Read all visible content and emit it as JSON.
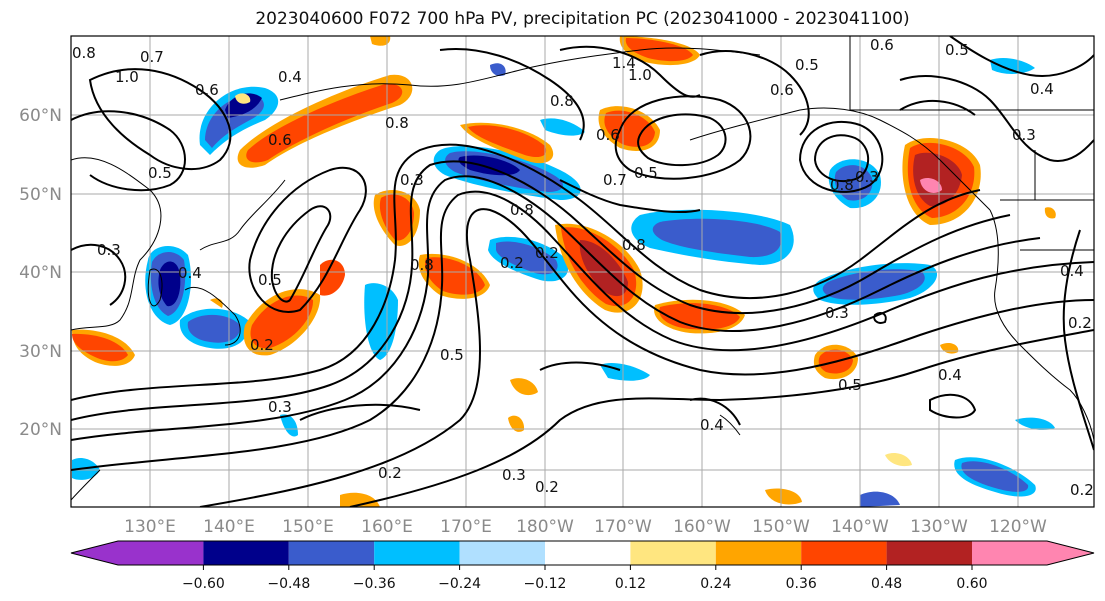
{
  "title": "2023040600 F072 700 hPa PV, precipitation PC (2023041000 - 2023041100)",
  "lat_labels": [
    "60°N",
    "50°N",
    "40°N",
    "30°N",
    "20°N"
  ],
  "lon_labels": [
    "130°E",
    "140°E",
    "150°E",
    "160°E",
    "170°E",
    "180°W",
    "170°W",
    "160°W",
    "150°W",
    "140°W",
    "130°W",
    "120°W"
  ],
  "colorbar": {
    "ticks": [
      "−0.60",
      "−0.48",
      "−0.36",
      "−0.24",
      "−0.12",
      "0.12",
      "0.24",
      "0.36",
      "0.48",
      "0.60"
    ],
    "colors": [
      "#9932cc",
      "#00008b",
      "#3a5ccc",
      "#00bfff",
      "#b0e0ff",
      "#ffffff",
      "#ffe680",
      "#ffa500",
      "#ff4500",
      "#b22222",
      "#ff85b0"
    ]
  },
  "contour_labels": [
    "0.8",
    "0.7",
    "1.0",
    "0.6",
    "0.4",
    "0.5",
    "0.3",
    "0.8",
    "0.6",
    "0.3",
    "0.4",
    "0.5",
    "0.8",
    "0.2",
    "0.3",
    "0.2",
    "0.3",
    "0.2",
    "1.4",
    "1.0",
    "0.8",
    "0.6",
    "0.7",
    "0.5",
    "0.5",
    "0.6",
    "0.8",
    "0.3",
    "0.3",
    "0.6",
    "0.5",
    "0.4",
    "0.4",
    "0.2",
    "0.2",
    "0.3",
    "0.8",
    "0.8",
    "0.2",
    "0.5",
    "0.4",
    "0.5",
    "0.2",
    "0.4"
  ]
}
